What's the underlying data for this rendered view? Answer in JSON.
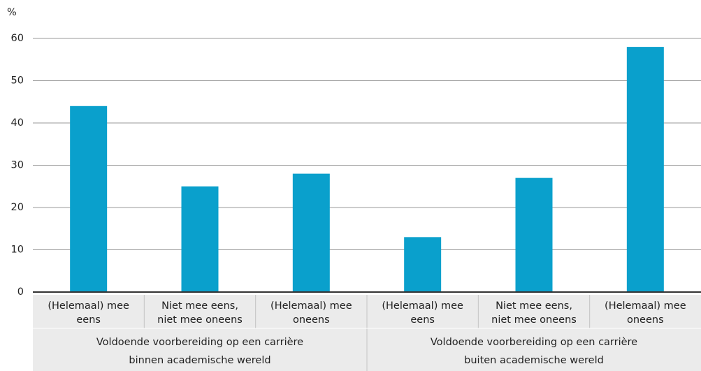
{
  "chart_data": {
    "type": "bar",
    "y_unit": "%",
    "color": "#0aa0cc",
    "ylim": [
      0,
      60
    ],
    "yticks": [
      0,
      10,
      20,
      30,
      40,
      50,
      60
    ],
    "grid": true,
    "groups": [
      {
        "label": [
          "Voldoende voorbereiding op een carrière",
          "binnen academische wereld"
        ],
        "categories": [
          [
            "(Helemaal) mee",
            "eens"
          ],
          [
            "Niet mee eens,",
            "niet mee oneens"
          ],
          [
            "(Helemaal) mee",
            "oneens"
          ]
        ],
        "values": [
          44,
          25,
          28
        ]
      },
      {
        "label": [
          "Voldoende voorbereiding op een carrière",
          "buiten academische wereld"
        ],
        "categories": [
          [
            "(Helemaal) mee",
            "eens"
          ],
          [
            "Niet mee eens,",
            "niet mee oneens"
          ],
          [
            "(Helemaal) mee",
            "oneens"
          ]
        ],
        "values": [
          13,
          27,
          58
        ]
      }
    ]
  }
}
